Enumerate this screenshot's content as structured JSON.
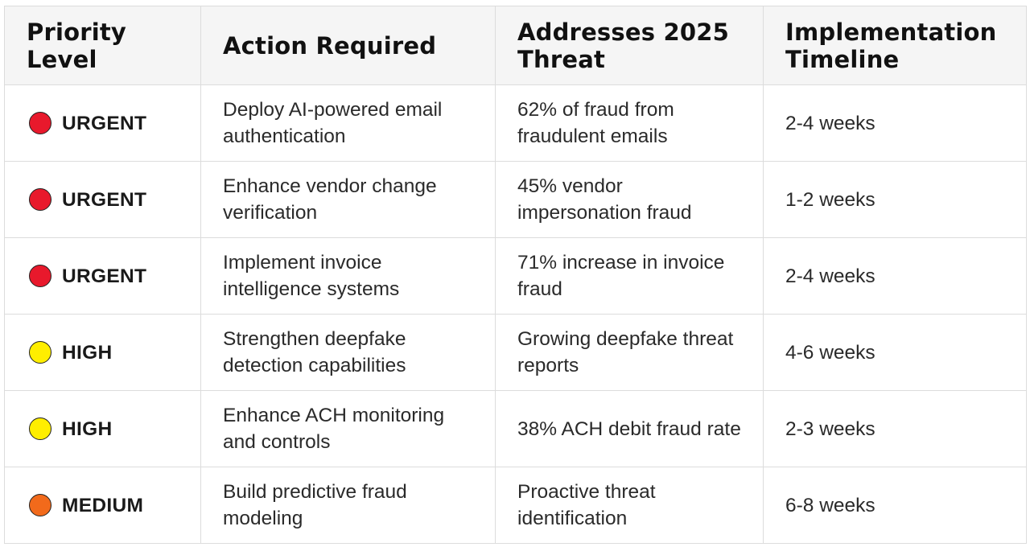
{
  "headers": {
    "priority": "Priority Level",
    "action": "Action Required",
    "threat": "Addresses 2025 Threat",
    "timeline": "Implementation Timeline"
  },
  "rows": [
    {
      "priority": "URGENT",
      "priority_icon": "red-circle-icon",
      "priority_color": "#e8192c",
      "action": "Deploy AI-powered email authentication",
      "threat": "62% of fraud from fraudulent emails",
      "timeline": "2-4 weeks"
    },
    {
      "priority": "URGENT",
      "priority_icon": "red-circle-icon",
      "priority_color": "#e8192c",
      "action": "Enhance vendor change verification",
      "threat": "45% vendor impersonation fraud",
      "timeline": "1-2 weeks"
    },
    {
      "priority": "URGENT",
      "priority_icon": "red-circle-icon",
      "priority_color": "#e8192c",
      "action": "Implement invoice intelligence systems",
      "threat": "71% increase in invoice fraud",
      "timeline": "2-4 weeks"
    },
    {
      "priority": "HIGH",
      "priority_icon": "yellow-circle-icon",
      "priority_color": "#ffee00",
      "action": "Strengthen deepfake detection capabilities",
      "threat": "Growing deepfake threat reports",
      "timeline": "4-6 weeks"
    },
    {
      "priority": "HIGH",
      "priority_icon": "yellow-circle-icon",
      "priority_color": "#ffee00",
      "action": "Enhance ACH monitoring and controls",
      "threat": "38% ACH debit fraud rate",
      "timeline": "2-3 weeks"
    },
    {
      "priority": "MEDIUM",
      "priority_icon": "orange-circle-icon",
      "priority_color": "#f26a1b",
      "action": "Build predictive fraud modeling",
      "threat": "Proactive threat identification",
      "timeline": "6-8 weeks"
    }
  ]
}
